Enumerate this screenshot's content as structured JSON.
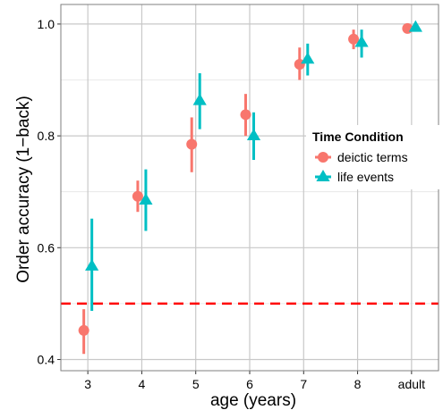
{
  "chart_data": {
    "type": "scatter",
    "xlabel": "age (years)",
    "ylabel": "Order accuracy (1−back)",
    "categories": [
      "3",
      "4",
      "5",
      "6",
      "7",
      "8",
      "adult"
    ],
    "ylim": [
      0.38,
      1.035
    ],
    "yticks": [
      0.4,
      0.6,
      0.8,
      1.0
    ],
    "ytick_labels": [
      "0.4",
      "0.6",
      "0.8",
      "1.0"
    ],
    "grid": true,
    "reference_line": {
      "y": 0.5,
      "style": "dashed",
      "color": "#ff0000"
    },
    "legend": {
      "title": "Time Condition",
      "placement": "right",
      "entries": [
        "deictic terms",
        "life events"
      ]
    },
    "series": [
      {
        "name": "deictic terms",
        "marker": "circle",
        "color": "#f8766d",
        "values": [
          0.452,
          0.692,
          0.785,
          0.838,
          0.928,
          0.973,
          0.992
        ],
        "lower": [
          0.41,
          0.664,
          0.735,
          0.8,
          0.9,
          0.955,
          0.985
        ],
        "upper": [
          0.49,
          0.72,
          0.833,
          0.875,
          0.958,
          0.99,
          0.998
        ]
      },
      {
        "name": "life events",
        "marker": "triangle",
        "color": "#00bfc4",
        "values": [
          0.567,
          0.685,
          0.863,
          0.8,
          0.937,
          0.967,
          0.994
        ],
        "lower": [
          0.487,
          0.63,
          0.812,
          0.757,
          0.908,
          0.94,
          0.988
        ],
        "upper": [
          0.652,
          0.74,
          0.912,
          0.842,
          0.965,
          0.99,
          1.0
        ]
      }
    ]
  }
}
